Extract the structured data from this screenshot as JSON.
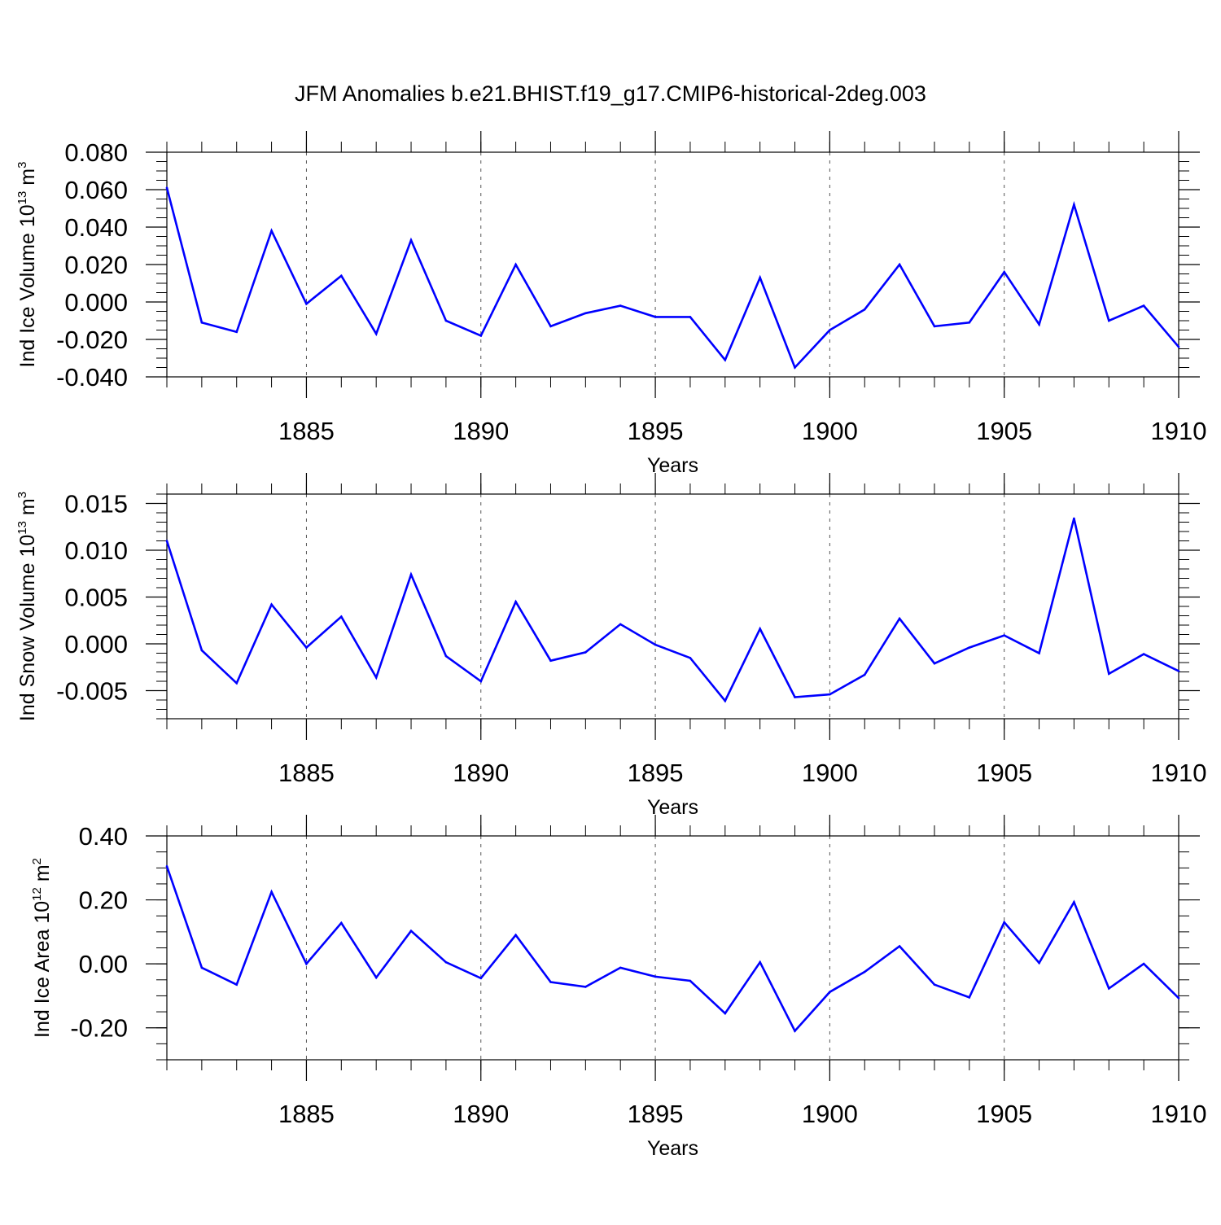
{
  "title": "JFM Anomalies b.e21.BHIST.f19_g17.CMIP6-historical-2deg.003",
  "colors": {
    "series": "#0000ff",
    "axis": "#000000",
    "grid": "#555555"
  },
  "chart_data": [
    {
      "type": "line",
      "ylabel": {
        "text": "Ind Ice Volume 10",
        "exp": "13",
        "unit": " m",
        "unit_exp": "3"
      },
      "xlabel": "Years",
      "xlim": [
        1881,
        1910
      ],
      "ylim": [
        -0.04,
        0.08
      ],
      "yticks": [
        -0.04,
        -0.02,
        0.0,
        0.02,
        0.04,
        0.06,
        0.08
      ],
      "ytick_labels": [
        "-0.040",
        "-0.020",
        "0.000",
        "0.020",
        "0.040",
        "0.060",
        "0.080"
      ],
      "yminor": 0.005,
      "xticks": [
        1885,
        1890,
        1895,
        1900,
        1905,
        1910
      ],
      "xtick_labels": [
        "1885",
        "1890",
        "1895",
        "1900",
        "1905",
        "1910"
      ],
      "grid": "x-dashed",
      "x": [
        1881,
        1882,
        1883,
        1884,
        1885,
        1886,
        1887,
        1888,
        1889,
        1890,
        1891,
        1892,
        1893,
        1894,
        1895,
        1896,
        1897,
        1898,
        1899,
        1900,
        1901,
        1902,
        1903,
        1904,
        1905,
        1906,
        1907,
        1908,
        1909,
        1910
      ],
      "y": [
        0.061,
        -0.011,
        -0.016,
        0.038,
        -0.001,
        0.014,
        -0.017,
        0.033,
        -0.01,
        -0.018,
        0.02,
        -0.013,
        -0.006,
        -0.002,
        -0.008,
        -0.008,
        -0.031,
        0.013,
        -0.035,
        -0.015,
        -0.004,
        0.02,
        -0.013,
        -0.011,
        0.016,
        -0.012,
        0.052,
        -0.01,
        -0.002,
        -0.024
      ]
    },
    {
      "type": "line",
      "ylabel": {
        "text": "Ind Snow Volume 10",
        "exp": "13",
        "unit": " m",
        "unit_exp": "3"
      },
      "xlabel": "Years",
      "xlim": [
        1881,
        1910
      ],
      "ylim": [
        -0.008,
        0.016
      ],
      "yticks": [
        -0.005,
        0.0,
        0.005,
        0.01,
        0.015
      ],
      "ytick_labels": [
        "-0.005",
        "0.000",
        "0.005",
        "0.010",
        "0.015"
      ],
      "yminor": 0.001,
      "xticks": [
        1885,
        1890,
        1895,
        1900,
        1905,
        1910
      ],
      "xtick_labels": [
        "1885",
        "1890",
        "1895",
        "1900",
        "1905",
        "1910"
      ],
      "grid": "x-dashed",
      "x": [
        1881,
        1882,
        1883,
        1884,
        1885,
        1886,
        1887,
        1888,
        1889,
        1890,
        1891,
        1892,
        1893,
        1894,
        1895,
        1896,
        1897,
        1898,
        1899,
        1900,
        1901,
        1902,
        1903,
        1904,
        1905,
        1906,
        1907,
        1908,
        1909,
        1910
      ],
      "y": [
        0.011,
        -0.0007,
        -0.0042,
        0.0042,
        -0.0004,
        0.0029,
        -0.0036,
        0.0074,
        -0.0013,
        -0.004,
        0.0045,
        -0.0018,
        -0.0009,
        0.0021,
        -0.0001,
        -0.0015,
        -0.0061,
        0.0016,
        -0.0057,
        -0.0054,
        -0.0033,
        0.0027,
        -0.0021,
        -0.0004,
        0.0009,
        -0.001,
        0.0134,
        -0.0032,
        -0.0011,
        -0.0029
      ]
    },
    {
      "type": "line",
      "ylabel": {
        "text": "Ind Ice Area 10",
        "exp": "12",
        "unit": " m",
        "unit_exp": "2"
      },
      "xlabel": "Years",
      "xlim": [
        1881,
        1910
      ],
      "ylim": [
        -0.3,
        0.4
      ],
      "yticks": [
        -0.2,
        0.0,
        0.2,
        0.4
      ],
      "ytick_labels": [
        "-0.20",
        "0.00",
        "0.20",
        "0.40"
      ],
      "yminor": 0.05,
      "xticks": [
        1885,
        1890,
        1895,
        1900,
        1905,
        1910
      ],
      "xtick_labels": [
        "1885",
        "1890",
        "1895",
        "1900",
        "1905",
        "1910"
      ],
      "grid": "x-dashed",
      "x": [
        1881,
        1882,
        1883,
        1884,
        1885,
        1886,
        1887,
        1888,
        1889,
        1890,
        1891,
        1892,
        1893,
        1894,
        1895,
        1896,
        1897,
        1898,
        1899,
        1900,
        1901,
        1902,
        1903,
        1904,
        1905,
        1906,
        1907,
        1908,
        1909,
        1910
      ],
      "y": [
        0.305,
        -0.012,
        -0.065,
        0.225,
        0.0,
        0.128,
        -0.043,
        0.103,
        0.005,
        -0.045,
        0.09,
        -0.057,
        -0.072,
        -0.012,
        -0.04,
        -0.053,
        -0.155,
        0.005,
        -0.21,
        -0.088,
        -0.025,
        0.055,
        -0.065,
        -0.105,
        0.13,
        0.003,
        0.193,
        -0.077,
        0.0,
        -0.107
      ]
    }
  ]
}
